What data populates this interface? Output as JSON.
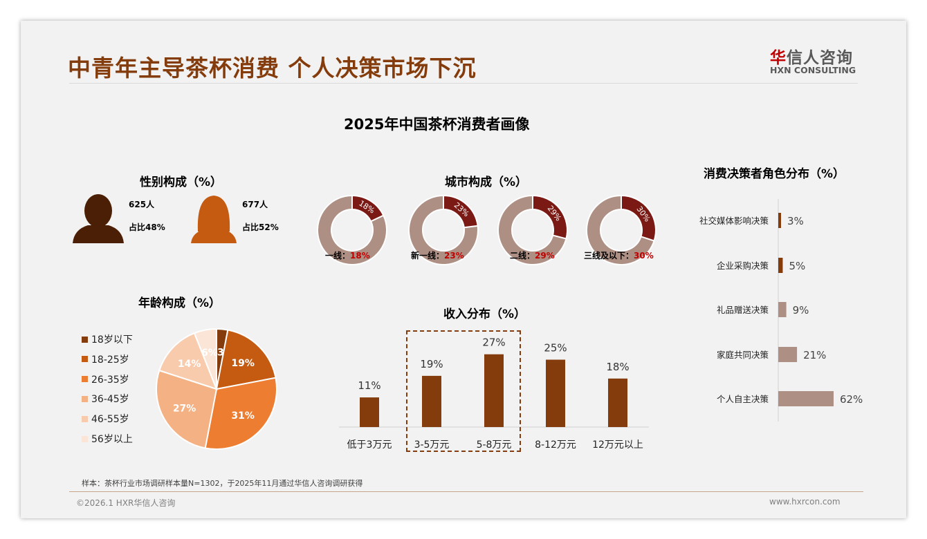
{
  "header": {
    "title": "中青年主导茶杯消费 个人决策市场下沉",
    "logo_cn_accent": "华",
    "logo_cn_rest": "信人咨询",
    "logo_en": "HXN CONSULTING"
  },
  "main_title": "2025年中国茶杯消费者画像",
  "gender": {
    "title": "性别构成（%）",
    "male": {
      "count": "625人",
      "share": "占比48%",
      "value": 48
    },
    "female": {
      "count": "677人",
      "share": "占比52%",
      "value": 52
    },
    "colors": {
      "male": "#4a1f05",
      "female": "#c55a11"
    }
  },
  "city": {
    "title": "城市构成（%）",
    "items": [
      {
        "name": "一线：",
        "value": 18,
        "label": "18%"
      },
      {
        "name": "新一线：",
        "value": 23,
        "label": "23%"
      },
      {
        "name": "二线：",
        "value": 29,
        "label": "29%"
      },
      {
        "name": "三线及以下：",
        "value": 30,
        "label": "30%"
      }
    ],
    "colors": {
      "value": "#7b1a14",
      "rest": "#ae8f84"
    }
  },
  "chart_data": [
    {
      "type": "pie",
      "title": "年龄构成（%）",
      "categories": [
        "18岁以下",
        "18-25岁",
        "26-35岁",
        "36-45岁",
        "46-55岁",
        "56岁以上"
      ],
      "values": [
        3,
        19,
        31,
        27,
        14,
        6
      ],
      "labels": [
        "3%",
        "19%",
        "31%",
        "27%",
        "14%",
        "6%"
      ],
      "colors": [
        "#843c0c",
        "#c55a11",
        "#ed7d31",
        "#f4b183",
        "#f8cbad",
        "#fbe5d6"
      ],
      "legend": "left"
    },
    {
      "type": "bar",
      "title": "收入分布（%）",
      "categories": [
        "低于3万元",
        "3-5万元",
        "5-8万元",
        "8-12万元",
        "12万元以上"
      ],
      "values": [
        11,
        19,
        27,
        25,
        18
      ],
      "labels": [
        "11%",
        "19%",
        "27%",
        "25%",
        "18%"
      ],
      "color": "#843c0c",
      "highlight": [
        "3-5万元",
        "5-8万元"
      ]
    },
    {
      "type": "bar",
      "orientation": "horizontal",
      "title": "消费决策者角色分布（%）",
      "categories": [
        "社交媒体影响决策",
        "企业采购决策",
        "礼品赠送决策",
        "家庭共同决策",
        "个人自主决策"
      ],
      "values": [
        3,
        5,
        9,
        21,
        62
      ],
      "labels": [
        "3%",
        "5%",
        "9%",
        "21%",
        "62%"
      ],
      "colors": [
        "#843c0c",
        "#843c0c",
        "#ae8f84",
        "#ae8f84",
        "#ae8f84"
      ]
    }
  ],
  "footer": {
    "note": "样本：茶杯行业市场调研样本量N=1302，于2025年11月通过华信人咨询调研获得",
    "copyright": "©2026.1 HXR华信人咨询",
    "url": "www.hxrcon.com"
  }
}
